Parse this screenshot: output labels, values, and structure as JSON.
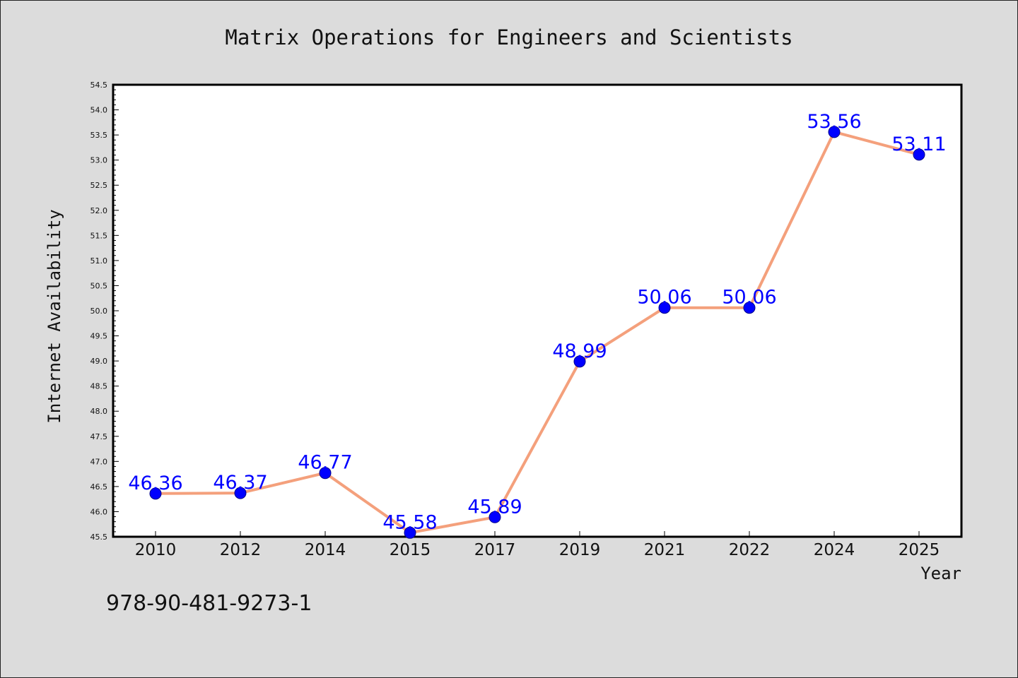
{
  "chart_data": {
    "type": "line",
    "title": "Matrix Operations for Engineers and Scientists",
    "xlabel": "Year",
    "ylabel": "Internet Availability",
    "categories": [
      "2010",
      "2012",
      "2014",
      "2015",
      "2017",
      "2019",
      "2021",
      "2022",
      "2024",
      "2025"
    ],
    "series": [
      {
        "values": [
          46.36,
          46.37,
          46.77,
          45.58,
          45.89,
          48.99,
          50.06,
          50.06,
          53.56,
          53.11
        ],
        "data_labels": [
          "46.36",
          "46.37",
          "46.77",
          "45.58",
          "45.89",
          "48.99",
          "50.06",
          "50.06",
          "53.56",
          "53.11"
        ]
      }
    ],
    "ylim": [
      45.5,
      54.5
    ],
    "yticks": [
      "45.5",
      "46.0",
      "46.5",
      "47.0",
      "47.5",
      "48.0",
      "48.5",
      "49.0",
      "49.5",
      "50.0",
      "50.5",
      "51.0",
      "51.5",
      "52.0",
      "52.5",
      "53.0",
      "53.5",
      "54.0",
      "54.5"
    ],
    "grid": false,
    "line_color": "#f4a07c",
    "marker_color": "#0000ff",
    "label_color": "#0000ff",
    "annotation": "978-90-481-9273-1"
  }
}
